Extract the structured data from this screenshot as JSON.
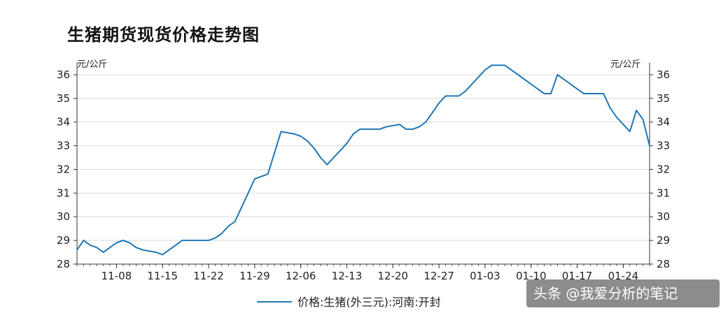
{
  "chart_data": {
    "type": "line",
    "title": "生猪期货现货价格走势图",
    "y_unit_left": "元/公斤",
    "y_unit_right": "元/公斤",
    "ylim": [
      28,
      36.5
    ],
    "yticks": [
      28,
      29,
      30,
      31,
      32,
      33,
      34,
      35,
      36
    ],
    "xticks": [
      "11-08",
      "11-15",
      "11-22",
      "11-29",
      "12-06",
      "12-13",
      "12-20",
      "12-27",
      "01-03",
      "01-10",
      "01-17",
      "01-24"
    ],
    "grid": true,
    "legend_position": "bottom",
    "series": [
      {
        "name": "价格:生猪(外三元):河南:开封",
        "color": "#1f77b4",
        "points": [
          [
            "11-02",
            28.6
          ],
          [
            "11-03",
            29.0
          ],
          [
            "11-04",
            28.8
          ],
          [
            "11-05",
            28.7
          ],
          [
            "11-06",
            28.5
          ],
          [
            "11-07",
            28.7
          ],
          [
            "11-08",
            28.9
          ],
          [
            "11-09",
            29.0
          ],
          [
            "11-10",
            28.9
          ],
          [
            "11-11",
            28.7
          ],
          [
            "11-12",
            28.6
          ],
          [
            "11-13",
            28.55
          ],
          [
            "11-14",
            28.5
          ],
          [
            "11-15",
            28.4
          ],
          [
            "11-16",
            28.6
          ],
          [
            "11-17",
            28.8
          ],
          [
            "11-18",
            29.0
          ],
          [
            "11-19",
            29.0
          ],
          [
            "11-20",
            29.0
          ],
          [
            "11-21",
            29.0
          ],
          [
            "11-22",
            29.0
          ],
          [
            "11-23",
            29.1
          ],
          [
            "11-24",
            29.3
          ],
          [
            "11-25",
            29.6
          ],
          [
            "11-26",
            29.8
          ],
          [
            "11-27",
            30.4
          ],
          [
            "11-28",
            31.0
          ],
          [
            "11-29",
            31.6
          ],
          [
            "11-30",
            31.7
          ],
          [
            "12-01",
            31.8
          ],
          [
            "12-02",
            32.7
          ],
          [
            "12-03",
            33.6
          ],
          [
            "12-04",
            33.55
          ],
          [
            "12-05",
            33.5
          ],
          [
            "12-06",
            33.4
          ],
          [
            "12-07",
            33.2
          ],
          [
            "12-08",
            32.9
          ],
          [
            "12-09",
            32.5
          ],
          [
            "12-10",
            32.2
          ],
          [
            "12-11",
            32.5
          ],
          [
            "12-12",
            32.8
          ],
          [
            "12-13",
            33.1
          ],
          [
            "12-14",
            33.5
          ],
          [
            "12-15",
            33.7
          ],
          [
            "12-16",
            33.7
          ],
          [
            "12-17",
            33.7
          ],
          [
            "12-18",
            33.7
          ],
          [
            "12-19",
            33.8
          ],
          [
            "12-20",
            33.85
          ],
          [
            "12-21",
            33.9
          ],
          [
            "12-22",
            33.7
          ],
          [
            "12-23",
            33.7
          ],
          [
            "12-24",
            33.8
          ],
          [
            "12-25",
            34.0
          ],
          [
            "12-26",
            34.4
          ],
          [
            "12-27",
            34.8
          ],
          [
            "12-28",
            35.1
          ],
          [
            "12-29",
            35.1
          ],
          [
            "12-30",
            35.1
          ],
          [
            "12-31",
            35.3
          ],
          [
            "01-01",
            35.6
          ],
          [
            "01-02",
            35.9
          ],
          [
            "01-03",
            36.2
          ],
          [
            "01-04",
            36.4
          ],
          [
            "01-05",
            36.4
          ],
          [
            "01-06",
            36.4
          ],
          [
            "01-07",
            36.2
          ],
          [
            "01-08",
            36.0
          ],
          [
            "01-09",
            35.8
          ],
          [
            "01-10",
            35.6
          ],
          [
            "01-11",
            35.4
          ],
          [
            "01-12",
            35.2
          ],
          [
            "01-13",
            35.2
          ],
          [
            "01-14",
            36.0
          ],
          [
            "01-15",
            35.8
          ],
          [
            "01-16",
            35.6
          ],
          [
            "01-17",
            35.4
          ],
          [
            "01-18",
            35.2
          ],
          [
            "01-19",
            35.2
          ],
          [
            "01-20",
            35.2
          ],
          [
            "01-21",
            35.2
          ],
          [
            "01-22",
            34.6
          ],
          [
            "01-23",
            34.2
          ],
          [
            "01-24",
            33.9
          ],
          [
            "01-25",
            33.6
          ],
          [
            "01-26",
            34.5
          ],
          [
            "01-27",
            34.1
          ],
          [
            "01-28",
            33.0
          ]
        ]
      }
    ]
  },
  "watermark": "头条 @我爱分析的笔记"
}
